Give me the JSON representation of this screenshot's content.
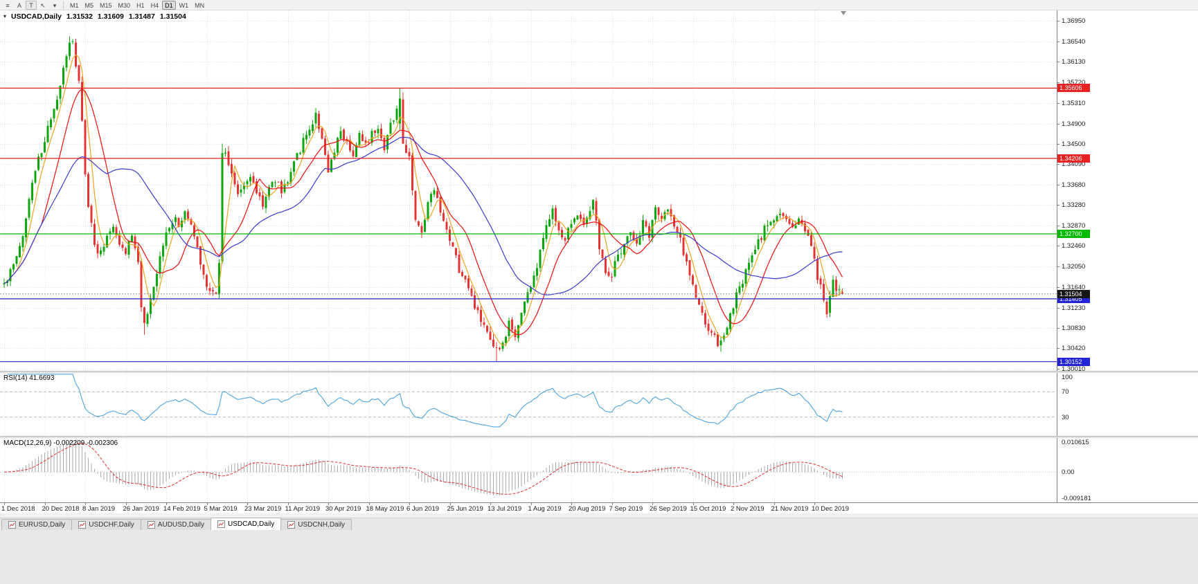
{
  "toolbar": {
    "left_icons": [
      {
        "name": "chart-objects-icon",
        "glyph": "≡",
        "boxed": false
      },
      {
        "name": "letter-a-button",
        "glyph": "A",
        "boxed": false
      },
      {
        "name": "text-tool-button",
        "glyph": "T",
        "boxed": true
      },
      {
        "name": "cursor-tool-icon",
        "glyph": "↖",
        "boxed": false
      },
      {
        "name": "dropdown-caret-icon",
        "glyph": "▾",
        "boxed": false
      }
    ],
    "timeframes": [
      "M1",
      "M5",
      "M15",
      "M30",
      "H1",
      "H4",
      "D1",
      "W1",
      "MN"
    ],
    "active_timeframe": "D1"
  },
  "chart": {
    "title": {
      "symbol_period": "USDCAD,Daily",
      "open": "1.31532",
      "high": "1.31609",
      "low": "1.31487",
      "close": "1.31504"
    },
    "colors": {
      "up": "#0da60d",
      "down": "#e43434",
      "grid": "#e0e0e0",
      "axis_text": "#1a1a1a"
    },
    "price_axis": {
      "labels": [
        "1.36950",
        "1.36540",
        "1.36130",
        "1.35720",
        "1.35310",
        "1.34900",
        "1.34500",
        "1.34090",
        "1.33680",
        "1.33280",
        "1.32870",
        "1.32460",
        "1.32050",
        "1.31640",
        "1.31230",
        "1.30830",
        "1.30420",
        "1.30010"
      ]
    },
    "date_axis": {
      "labels": [
        "1 Dec 2018",
        "20 Dec 2018",
        "8 Jan 2019",
        "26 Jan 2019",
        "14 Feb 2019",
        "5 Mar 2019",
        "23 Mar 2019",
        "11 Apr 2019",
        "30 Apr 2019",
        "18 May 2019",
        "6 Jun 2019",
        "25 Jun 2019",
        "13 Jul 2019",
        "1 Aug 2019",
        "20 Aug 2019",
        "7 Sep 2019",
        "26 Sep 2019",
        "15 Oct 2019",
        "2 Nov 2019",
        "21 Nov 2019",
        "10 Dec 2019"
      ],
      "candles_per_label": 13
    },
    "levels": [
      {
        "price": 1.35606,
        "label": "1.35606",
        "color": "#e62222"
      },
      {
        "price": 1.34206,
        "label": "1.34206",
        "color": "#e62222"
      },
      {
        "price": 1.327,
        "label": "1.32700",
        "color": "#00bb00"
      },
      {
        "price": 1.31405,
        "label": "1.31405",
        "color": "#2323d7"
      },
      {
        "price": 1.30152,
        "label": "1.30152",
        "color": "#2323d7"
      }
    ],
    "current_price": {
      "value": 1.31504,
      "label": "1.31504",
      "tag_color": "#161616"
    }
  },
  "chart_data": {
    "type": "candlestick",
    "symbol": "USDCAD",
    "timeframe": "Daily",
    "count": 270,
    "seed": 42,
    "noise": 0.0009,
    "gap": 0.0003,
    "wick": 0.0011,
    "last_candle": {
      "open": 1.31532,
      "high": 1.31609,
      "low": 1.31487,
      "close": 1.31504
    },
    "price_anchors": [
      [
        0,
        1.317
      ],
      [
        3,
        1.3205
      ],
      [
        5,
        1.324
      ],
      [
        7,
        1.33
      ],
      [
        9,
        1.338
      ],
      [
        11,
        1.342
      ],
      [
        13,
        1.345
      ],
      [
        15,
        1.3505
      ],
      [
        17,
        1.353
      ],
      [
        19,
        1.36
      ],
      [
        21,
        1.3655
      ],
      [
        22,
        1.3645
      ],
      [
        24,
        1.357
      ],
      [
        25,
        1.349
      ],
      [
        26,
        1.3385
      ],
      [
        27,
        1.333
      ],
      [
        29,
        1.325
      ],
      [
        31,
        1.323
      ],
      [
        33,
        1.327
      ],
      [
        35,
        1.329
      ],
      [
        37,
        1.325
      ],
      [
        39,
        1.3235
      ],
      [
        41,
        1.327
      ],
      [
        43,
        1.321
      ],
      [
        44,
        1.313
      ],
      [
        45,
        1.3085
      ],
      [
        46,
        1.3105
      ],
      [
        48,
        1.316
      ],
      [
        50,
        1.322
      ],
      [
        52,
        1.327
      ],
      [
        54,
        1.33
      ],
      [
        56,
        1.329
      ],
      [
        58,
        1.331
      ],
      [
        60,
        1.329
      ],
      [
        62,
        1.324
      ],
      [
        64,
        1.319
      ],
      [
        66,
        1.3155
      ],
      [
        68,
        1.315
      ],
      [
        69,
        1.322
      ],
      [
        70,
        1.343
      ],
      [
        71,
        1.3435
      ],
      [
        73,
        1.339
      ],
      [
        75,
        1.3345
      ],
      [
        77,
        1.337
      ],
      [
        79,
        1.3385
      ],
      [
        81,
        1.3355
      ],
      [
        83,
        1.333
      ],
      [
        85,
        1.336
      ],
      [
        87,
        1.338
      ],
      [
        89,
        1.3355
      ],
      [
        91,
        1.338
      ],
      [
        93,
        1.3415
      ],
      [
        95,
        1.344
      ],
      [
        97,
        1.3465
      ],
      [
        99,
        1.3495
      ],
      [
        100,
        1.3505
      ],
      [
        102,
        1.3465
      ],
      [
        104,
        1.3385
      ],
      [
        106,
        1.3435
      ],
      [
        108,
        1.3475
      ],
      [
        110,
        1.3455
      ],
      [
        112,
        1.343
      ],
      [
        114,
        1.3465
      ],
      [
        116,
        1.3445
      ],
      [
        118,
        1.3475
      ],
      [
        120,
        1.3485
      ],
      [
        122,
        1.3445
      ],
      [
        124,
        1.349
      ],
      [
        126,
        1.352
      ],
      [
        127,
        1.354
      ],
      [
        128,
        1.345
      ],
      [
        130,
        1.3425
      ],
      [
        132,
        1.3295
      ],
      [
        134,
        1.327
      ],
      [
        136,
        1.333
      ],
      [
        138,
        1.3355
      ],
      [
        140,
        1.331
      ],
      [
        142,
        1.327
      ],
      [
        144,
        1.324
      ],
      [
        146,
        1.32
      ],
      [
        148,
        1.3175
      ],
      [
        150,
        1.3145
      ],
      [
        152,
        1.311
      ],
      [
        154,
        1.3085
      ],
      [
        156,
        1.305
      ],
      [
        158,
        1.3035
      ],
      [
        160,
        1.3045
      ],
      [
        162,
        1.309
      ],
      [
        164,
        1.3065
      ],
      [
        166,
        1.3115
      ],
      [
        168,
        1.315
      ],
      [
        170,
        1.3185
      ],
      [
        172,
        1.323
      ],
      [
        174,
        1.329
      ],
      [
        176,
        1.332
      ],
      [
        178,
        1.327
      ],
      [
        180,
        1.326
      ],
      [
        182,
        1.329
      ],
      [
        184,
        1.3315
      ],
      [
        186,
        1.329
      ],
      [
        188,
        1.332
      ],
      [
        189,
        1.3345
      ],
      [
        191,
        1.3245
      ],
      [
        193,
        1.32
      ],
      [
        195,
        1.319
      ],
      [
        197,
        1.3225
      ],
      [
        199,
        1.3255
      ],
      [
        201,
        1.327
      ],
      [
        203,
        1.3255
      ],
      [
        205,
        1.329
      ],
      [
        207,
        1.327
      ],
      [
        209,
        1.332
      ],
      [
        211,
        1.3305
      ],
      [
        213,
        1.332
      ],
      [
        215,
        1.3285
      ],
      [
        217,
        1.3255
      ],
      [
        219,
        1.3215
      ],
      [
        221,
        1.3165
      ],
      [
        223,
        1.3125
      ],
      [
        225,
        1.309
      ],
      [
        227,
        1.307
      ],
      [
        229,
        1.305
      ],
      [
        231,
        1.306
      ],
      [
        233,
        1.311
      ],
      [
        235,
        1.3145
      ],
      [
        237,
        1.3175
      ],
      [
        239,
        1.321
      ],
      [
        241,
        1.324
      ],
      [
        243,
        1.3265
      ],
      [
        245,
        1.3295
      ],
      [
        247,
        1.329
      ],
      [
        249,
        1.3315
      ],
      [
        251,
        1.33
      ],
      [
        253,
        1.328
      ],
      [
        255,
        1.33
      ],
      [
        257,
        1.328
      ],
      [
        259,
        1.324
      ],
      [
        260,
        1.3225
      ],
      [
        261,
        1.3185
      ],
      [
        262,
        1.3165
      ],
      [
        263,
        1.313
      ],
      [
        264,
        1.3115
      ],
      [
        265,
        1.315
      ],
      [
        266,
        1.317
      ],
      [
        267,
        1.316
      ],
      [
        268,
        1.3155
      ],
      [
        269,
        1.315
      ]
    ],
    "overrides": {
      "21": {
        "h": 1.3664
      },
      "45": {
        "l": 1.3069
      },
      "70": {
        "h": 1.345
      },
      "100": {
        "h": 1.3521
      },
      "127": {
        "o": 1.349,
        "h": 1.3561,
        "l": 1.3478,
        "c": 1.354
      },
      "128": {
        "o": 1.3538,
        "c": 1.345
      },
      "158": {
        "l": 1.3016
      },
      "230": {
        "l": 1.3035
      },
      "264": {
        "l": 1.3103
      },
      "269": {
        "o": 1.31532,
        "h": 1.31609,
        "l": 1.31487,
        "c": 1.31504
      }
    },
    "moving_averages": [
      {
        "name": "ma-fast",
        "period": 5,
        "color": "#eea41f"
      },
      {
        "name": "ma-mid",
        "period": 13,
        "color": "#f20c0c"
      },
      {
        "name": "ma-slow",
        "period": 34,
        "color": "#3a3ad2"
      }
    ],
    "rsi": {
      "label": "RSI(14) 41.6693",
      "period": 14,
      "value": 41.6693,
      "upper": 70,
      "lower": 30,
      "color": "#4aa3df",
      "axis_labels": [
        {
          "text": "100",
          "value": 100
        },
        {
          "text": "70",
          "value": 70
        },
        {
          "text": "30",
          "value": 30
        }
      ]
    },
    "macd": {
      "label": "MACD(12,26,9) -0.002209 -0.002306",
      "fast": 12,
      "slow": 26,
      "signal": 9,
      "main_value": -0.002209,
      "signal_value": -0.002306,
      "hist_color": "#a9a9a9",
      "signal_color": "#e03030",
      "scale_top": 0.0118,
      "scale_bottom": -0.0105,
      "axis_labels": [
        {
          "text": "0.010615",
          "value": 0.010615
        },
        {
          "text": "0.00",
          "value": 0
        },
        {
          "text": "-0.009181",
          "value": -0.009181
        }
      ]
    }
  },
  "tabs": {
    "items": [
      "EURUSD,Daily",
      "USDCHF,Daily",
      "AUDUSD,Daily",
      "USDCAD,Daily",
      "USDCNH,Daily"
    ],
    "active": "USDCAD,Daily"
  }
}
